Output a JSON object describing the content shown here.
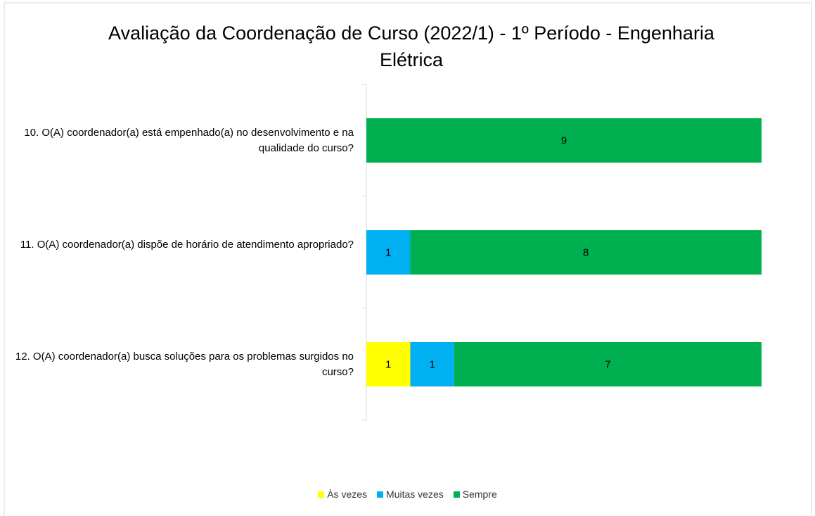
{
  "chart_data": {
    "type": "stacked_bar_horizontal",
    "title": "Avaliação da Coordenação de Curso (2022/1) - 1º Período - Engenharia Elétrica",
    "categories": [
      "10. O(A) coordenador(a) está empenhado(a) no desenvolvimento e na qualidade do curso?",
      "11. O(A) coordenador(a) dispõe de horário de atendimento apropriado?",
      "12. O(A) coordenador(a) busca soluções para os problemas surgidos no curso?"
    ],
    "series": [
      {
        "name": "Às vezes",
        "color": "#ffff00",
        "values": [
          null,
          null,
          1
        ]
      },
      {
        "name": "Muitas vezes",
        "color": "#00b0f0",
        "values": [
          null,
          1,
          1
        ]
      },
      {
        "name": "Sempre",
        "color": "#00b050",
        "values": [
          9,
          8,
          7
        ]
      }
    ],
    "xlim": [
      0,
      9
    ],
    "legend": "bottom"
  }
}
